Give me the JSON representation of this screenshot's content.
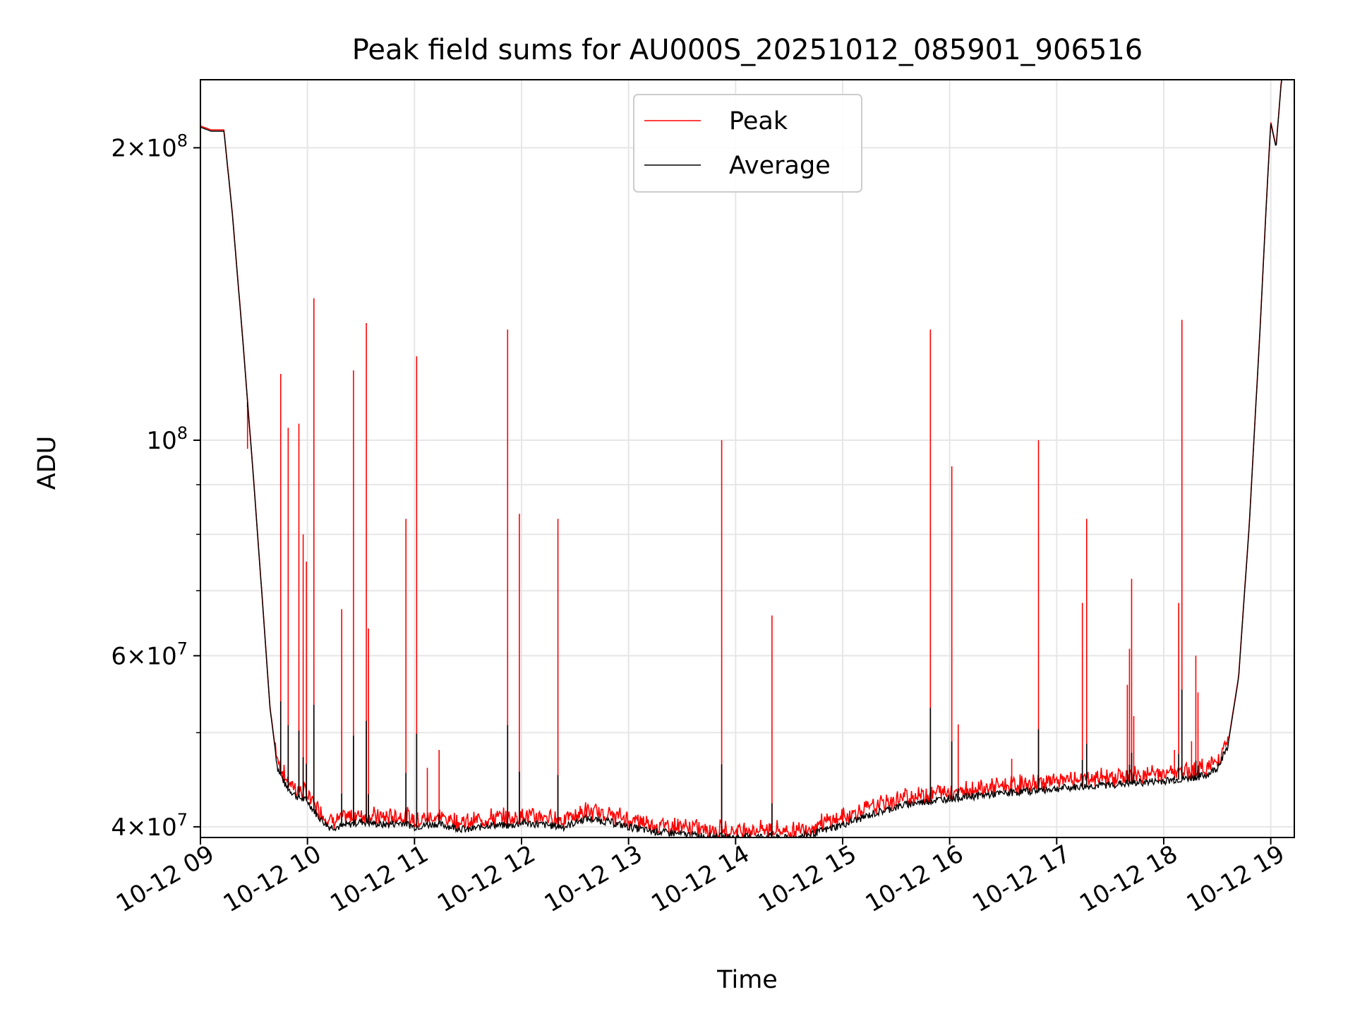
{
  "chart_data": {
    "type": "line",
    "title": "Peak field sums for AU000S_20251012_085901_906516",
    "xlabel": "Time",
    "ylabel": "ADU",
    "yscale": "log",
    "xlim": [
      9.0,
      19.22
    ],
    "ylim": [
      39000000,
      235000000
    ],
    "grid": true,
    "legend": {
      "placement": "upper center",
      "entries": [
        "Peak",
        "Average"
      ]
    },
    "x_ticks": [
      {
        "value": 9,
        "label": "10-12 09"
      },
      {
        "value": 10,
        "label": "10-12 10"
      },
      {
        "value": 11,
        "label": "10-12 11"
      },
      {
        "value": 12,
        "label": "10-12 12"
      },
      {
        "value": 13,
        "label": "10-12 13"
      },
      {
        "value": 14,
        "label": "10-12 14"
      },
      {
        "value": 15,
        "label": "10-12 15"
      },
      {
        "value": 16,
        "label": "10-12 16"
      },
      {
        "value": 17,
        "label": "10-12 17"
      },
      {
        "value": 18,
        "label": "10-12 18"
      },
      {
        "value": 19,
        "label": "10-12 19"
      }
    ],
    "y_ticks": [
      {
        "value": 40000000,
        "mantissa": "4",
        "exp": "7",
        "style": "sci"
      },
      {
        "value": 60000000,
        "mantissa": "6",
        "exp": "7",
        "style": "sci"
      },
      {
        "value": 100000000,
        "mantissa": "",
        "exp": "8",
        "style": "pow"
      },
      {
        "value": 200000000,
        "mantissa": "2",
        "exp": "8",
        "style": "sci"
      }
    ],
    "y_minor_ticks": [
      50000000,
      70000000,
      80000000,
      90000000
    ],
    "series": [
      {
        "name": "Average",
        "color": "#000000",
        "x": [
          9.0,
          9.1,
          9.22,
          9.3,
          9.4,
          9.5,
          9.58,
          9.65,
          9.72,
          9.8,
          9.9,
          10.0,
          10.1,
          10.2,
          10.3,
          10.5,
          10.7,
          10.9,
          11.0,
          11.2,
          11.5,
          11.7,
          11.9,
          12.0,
          12.2,
          12.4,
          12.6,
          12.8,
          13.0,
          13.2,
          13.5,
          13.8,
          14.0,
          14.3,
          14.5,
          14.7,
          15.0,
          15.3,
          15.6,
          16.0,
          16.5,
          17.0,
          17.5,
          18.0,
          18.2,
          18.4,
          18.5,
          18.6,
          18.7,
          18.8,
          18.9,
          18.97,
          19.0,
          19.05,
          19.1,
          19.22
        ],
        "y": [
          210000000,
          208000000,
          208000000,
          170000000,
          125000000,
          90000000,
          68000000,
          53000000,
          46000000,
          44000000,
          43000000,
          42500000,
          41000000,
          40000000,
          40000000,
          40500000,
          40200000,
          40400000,
          40000000,
          40300000,
          39700000,
          40200000,
          40100000,
          40400000,
          40200000,
          40000000,
          40800000,
          40500000,
          40000000,
          39600000,
          39300000,
          39100000,
          39000000,
          39100000,
          38900000,
          39300000,
          40200000,
          41300000,
          42200000,
          42800000,
          43300000,
          43800000,
          44200000,
          44600000,
          44800000,
          45200000,
          46000000,
          48500000,
          57000000,
          82000000,
          130000000,
          185000000,
          212000000,
          200000000,
          235000000,
          240000000
        ]
      },
      {
        "name": "Peak",
        "color": "#ff0000",
        "spike_x": [
          9.44,
          9.75,
          9.82,
          9.92,
          9.96,
          9.99,
          10.06,
          10.32,
          10.43,
          10.55,
          10.57,
          10.92,
          11.02,
          11.12,
          11.23,
          11.87,
          11.98,
          12.34,
          13.87,
          14.34,
          15.82,
          16.02,
          16.08,
          16.58,
          16.83,
          17.24,
          17.28,
          17.66,
          17.68,
          17.7,
          17.72,
          18.1,
          18.14,
          18.17,
          18.26,
          18.3,
          18.32
        ],
        "spike_y": [
          98000000,
          117000000,
          103000000,
          104000000,
          80000000,
          75000000,
          140000000,
          67000000,
          118000000,
          132000000,
          64000000,
          83000000,
          122000000,
          46000000,
          48000000,
          130000000,
          84000000,
          83000000,
          100000000,
          66000000,
          130000000,
          94000000,
          51000000,
          47000000,
          100000000,
          68000000,
          83000000,
          56000000,
          61000000,
          72000000,
          52000000,
          48000000,
          68000000,
          133000000,
          49000000,
          60000000,
          55000000
        ]
      }
    ]
  }
}
